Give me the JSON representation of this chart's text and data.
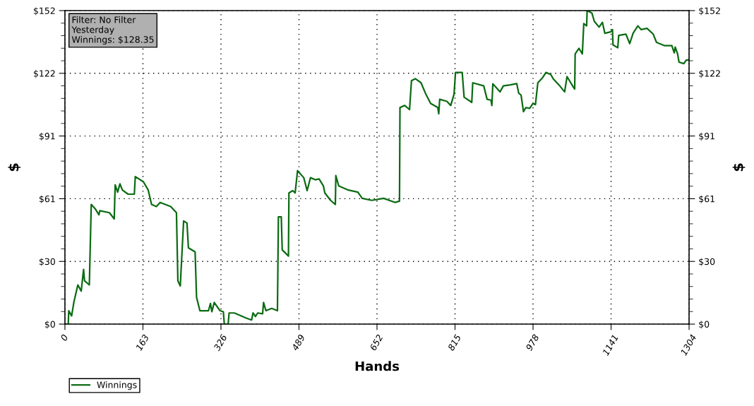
{
  "chart_data": {
    "type": "line",
    "xlabel": "Hands",
    "ylabel": "$",
    "y2label": "$",
    "annotations": [
      "Filter: No Filter\nYesterday\nWinnings: $128.35"
    ],
    "xlim": [
      0,
      1304
    ],
    "xticks": [
      0,
      163,
      326,
      489,
      652,
      815,
      978,
      1141,
      1304
    ],
    "ylim": [
      0,
      152
    ],
    "yticks": [
      {
        "value": 0,
        "label": "$0"
      },
      {
        "value": 30.4,
        "label": "$30"
      },
      {
        "value": 60.8,
        "label": "$61"
      },
      {
        "value": 91.2,
        "label": "$91"
      },
      {
        "value": 121.6,
        "label": "$122"
      },
      {
        "value": 152,
        "label": "$152"
      }
    ],
    "y2lim": [
      0,
      152
    ],
    "y2ticks": [
      {
        "value": 0,
        "label": "$0"
      },
      {
        "value": 30.4,
        "label": "$30"
      },
      {
        "value": 60.8,
        "label": "$61"
      },
      {
        "value": 91.2,
        "label": "$91"
      },
      {
        "value": 121.6,
        "label": "$122"
      },
      {
        "value": 152,
        "label": "$152"
      }
    ],
    "grid": true,
    "legend": "bottom left",
    "marker": "none",
    "line_style": "solid",
    "series": [
      {
        "name": "Winnings",
        "color": "#0b6b12",
        "x": [
          2,
          7,
          8,
          14,
          19,
          27,
          34,
          39,
          41,
          51,
          55,
          63,
          71,
          73,
          93,
          103,
          105,
          110,
          115,
          120,
          132,
          145,
          147,
          164,
          174,
          181,
          191,
          199,
          221,
          233,
          236,
          241,
          248,
          255,
          258,
          272,
          275,
          282,
          300,
          304,
          307,
          312,
          324,
          331,
          333,
          341,
          343,
          354,
          378,
          390,
          393,
          398,
          403,
          413,
          415,
          420,
          432,
          444,
          446,
          452,
          454,
          467,
          468,
          476,
          481,
          486,
          499,
          506,
          513,
          523,
          531,
          540,
          543,
          555,
          565,
          566,
          572,
          592,
          612,
          621,
          641,
          666,
          690,
          699,
          700,
          710,
          720,
          724,
          732,
          744,
          754,
          764,
          779,
          781,
          783,
          798,
          806,
          813,
          816,
          830,
          834,
          850,
          852,
          875,
          882,
          890,
          892,
          894,
          909,
          916,
          931,
          944,
          948,
          953,
          958,
          963,
          971,
          978,
          983,
          988,
          998,
          1005,
          1015,
          1020,
          1032,
          1044,
          1049,
          1062,
          1065,
          1066,
          1074,
          1081,
          1084,
          1090,
          1091,
          1101,
          1106,
          1116,
          1123,
          1128,
          1140,
          1144,
          1145,
          1155,
          1157,
          1172,
          1180,
          1187,
          1197,
          1204,
          1216,
          1229,
          1236,
          1253,
          1268,
          1273,
          1275,
          1280,
          1283,
          1293,
          1298,
          1304
        ],
        "values": [
          0,
          0,
          6.5,
          4,
          11,
          19,
          16,
          26.5,
          21,
          19,
          58,
          56,
          53,
          55,
          54,
          51,
          67.5,
          64,
          68,
          65,
          63,
          63,
          71.5,
          69,
          65,
          58,
          57,
          59,
          57,
          54,
          21,
          18.5,
          50,
          49,
          37,
          35,
          13,
          6.5,
          6.5,
          10,
          6,
          10.5,
          6.5,
          6,
          0,
          0,
          5.4,
          5.4,
          3,
          2,
          5.4,
          3.7,
          5.4,
          5,
          10.5,
          6.5,
          7.6,
          6.5,
          52,
          52,
          36,
          33,
          63.6,
          64.7,
          63.6,
          74.4,
          71,
          64.7,
          71,
          70,
          70.4,
          67,
          63.6,
          60,
          58,
          72,
          67,
          65,
          64,
          61,
          60,
          61,
          59,
          59.6,
          105,
          106,
          104,
          118,
          119,
          117,
          111.5,
          107,
          105,
          102,
          109,
          108,
          106,
          111.5,
          122,
          122,
          110,
          107.5,
          117,
          115.5,
          109,
          108.6,
          106,
          116.5,
          112.6,
          115.5,
          116,
          116.6,
          112,
          111,
          103,
          105,
          104.6,
          107,
          106.4,
          117,
          119.5,
          122,
          121,
          119,
          116,
          112.6,
          120,
          115,
          114,
          131,
          133.7,
          131,
          145.7,
          144.6,
          152,
          150.8,
          146.8,
          144,
          146.3,
          141,
          141.7,
          142.8,
          135.4,
          134,
          140,
          140.6,
          136,
          141,
          144.6,
          142.8,
          143.4,
          140.6,
          136.6,
          135,
          135,
          131.5,
          134.3,
          131,
          127,
          126.3,
          128,
          128
        ]
      }
    ]
  }
}
